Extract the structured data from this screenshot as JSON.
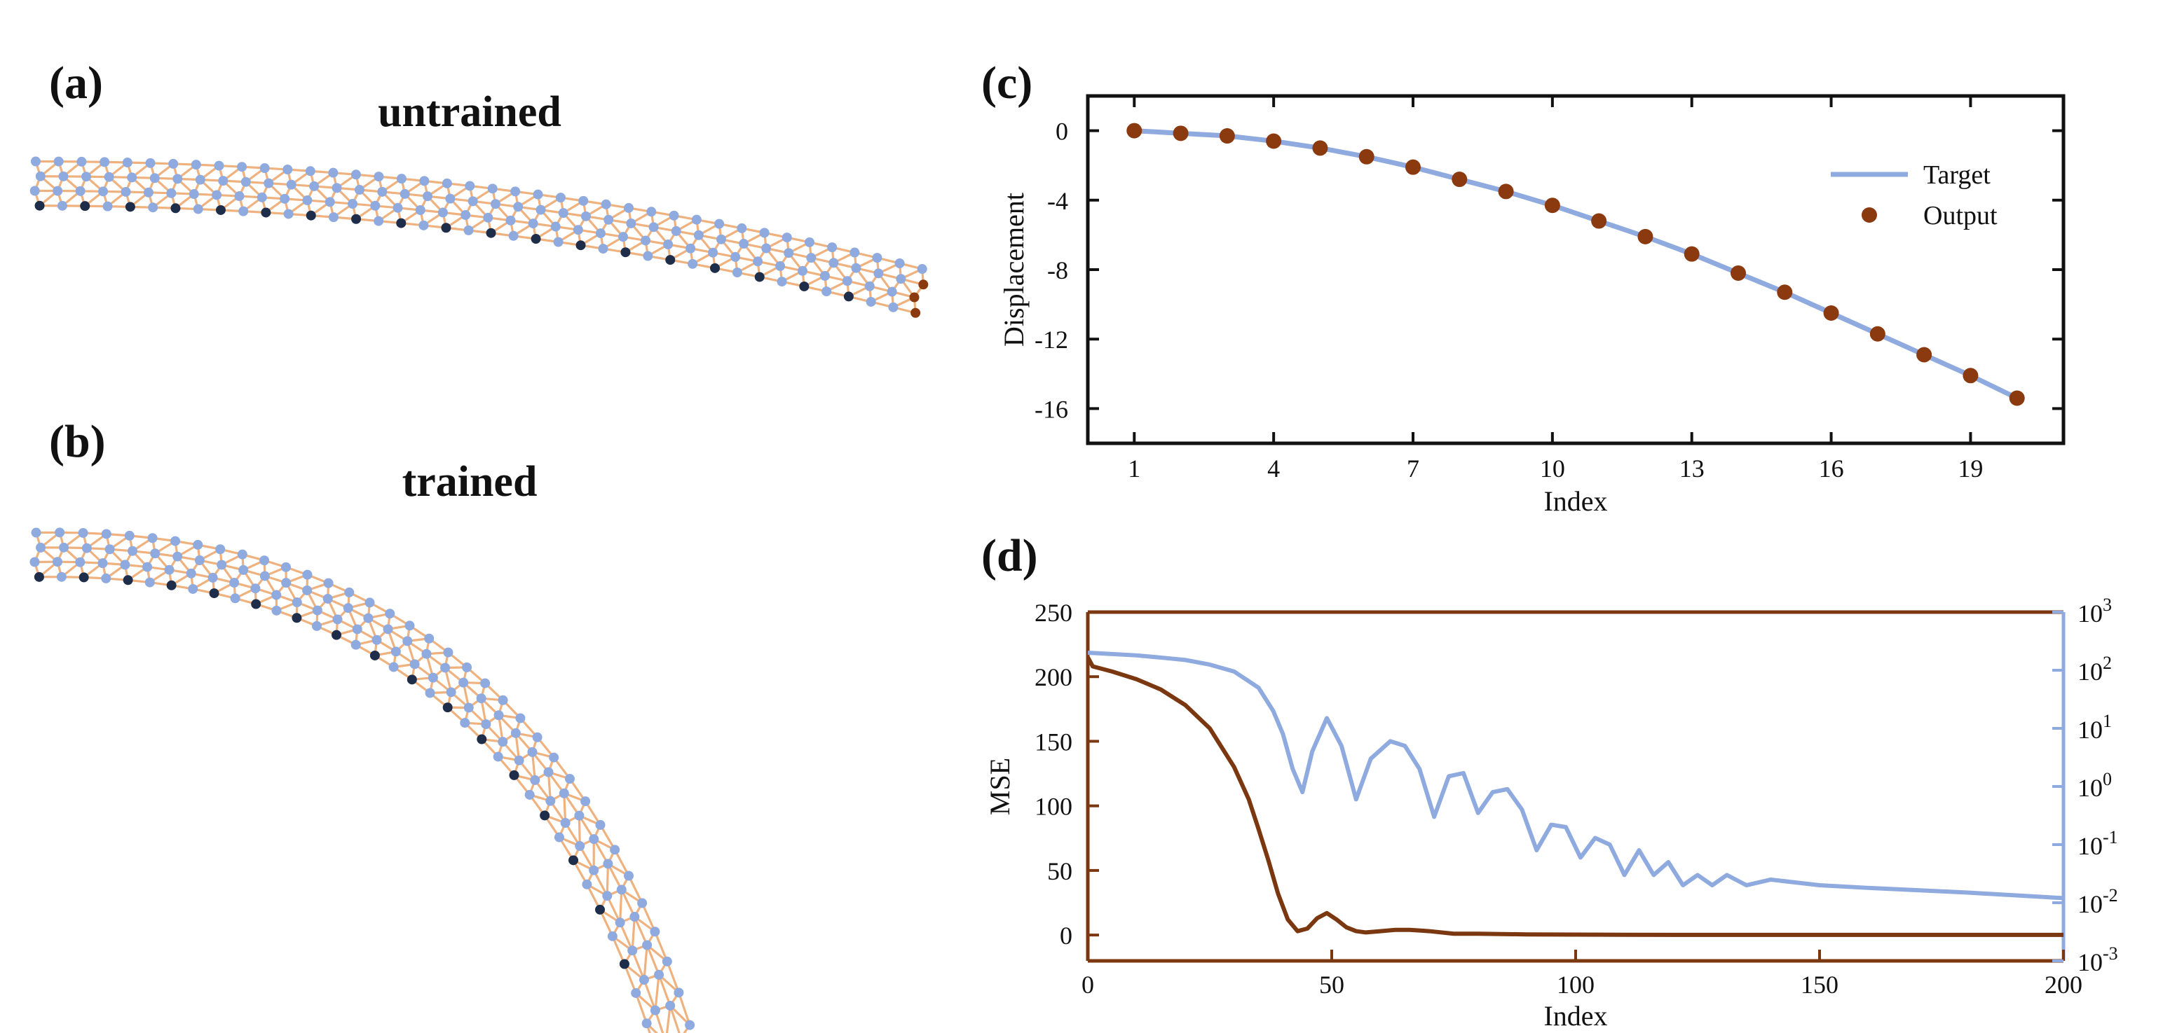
{
  "panels": {
    "a": {
      "label": "(a)",
      "title": "untrained"
    },
    "b": {
      "label": "(b)",
      "title": "trained"
    },
    "c": {
      "label": "(c)"
    },
    "d": {
      "label": "(d)"
    }
  },
  "colors": {
    "bond": "#efb27e",
    "node": "#8eaadf",
    "fixed_node": "#1e2d4a",
    "output_node": "#8b3a10",
    "target": "#8eaadf",
    "output": "#8b3a10",
    "mse": "#7a3710",
    "right_axis": "#8eaadf"
  },
  "chart_data": [
    {
      "panel": "c",
      "type": "line",
      "xlabel": "Index",
      "ylabel": "Displacement",
      "xlim": [
        0,
        21
      ],
      "ylim": [
        -18,
        2
      ],
      "xticks": [
        1,
        4,
        7,
        10,
        13,
        16,
        19
      ],
      "yticks": [
        0,
        -4,
        -8,
        -12,
        -16
      ],
      "ytick_labels": [
        "0",
        "-4",
        "-8",
        "-12",
        "-16"
      ],
      "legend": {
        "placement": "top-right",
        "entries": [
          "Target",
          "Output"
        ]
      },
      "x": [
        1,
        2,
        3,
        4,
        5,
        6,
        7,
        8,
        9,
        10,
        11,
        12,
        13,
        14,
        15,
        16,
        17,
        18,
        19,
        20
      ],
      "series": [
        {
          "name": "Target",
          "kind": "line",
          "values": [
            0,
            -0.15,
            -0.3,
            -0.6,
            -1.0,
            -1.5,
            -2.1,
            -2.8,
            -3.5,
            -4.3,
            -5.2,
            -6.1,
            -7.1,
            -8.2,
            -9.3,
            -10.5,
            -11.7,
            -12.9,
            -14.1,
            -15.4
          ]
        },
        {
          "name": "Output",
          "kind": "scatter",
          "values": [
            0,
            -0.15,
            -0.3,
            -0.6,
            -1.0,
            -1.5,
            -2.1,
            -2.8,
            -3.5,
            -4.3,
            -5.2,
            -6.1,
            -7.1,
            -8.2,
            -9.3,
            -10.5,
            -11.7,
            -12.9,
            -14.1,
            -15.4
          ]
        }
      ]
    },
    {
      "panel": "d",
      "type": "line",
      "xlabel": "Index",
      "ylabel": "MSE",
      "xlim": [
        0,
        200
      ],
      "ylim": [
        -20,
        250
      ],
      "xticks": [
        0,
        50,
        100,
        150,
        200
      ],
      "yticks": [
        0,
        50,
        100,
        150,
        200,
        250
      ],
      "right_axis": {
        "scale": "log",
        "ylim": [
          0.001,
          1000
        ],
        "ticks": [
          1000,
          100,
          10,
          1,
          0.1,
          0.01,
          0.001
        ],
        "tick_bases": [
          "10",
          "10",
          "10",
          "10",
          "10",
          "10",
          "10"
        ],
        "tick_exponents": [
          "3",
          "2",
          "1",
          "0",
          "-1",
          "-2",
          "-3"
        ]
      },
      "series": [
        {
          "axis": "left",
          "x": [
            0,
            1,
            5,
            10,
            15,
            20,
            25,
            30,
            33,
            35,
            37,
            39,
            41,
            43,
            45,
            47,
            49,
            51,
            53,
            55,
            57,
            60,
            63,
            66,
            70,
            75,
            80,
            90,
            100,
            110,
            120,
            150,
            200
          ],
          "values": [
            215,
            208,
            204,
            198,
            190,
            178,
            160,
            130,
            105,
            82,
            58,
            32,
            12,
            3,
            5,
            13,
            17,
            12,
            6,
            3,
            2,
            3,
            4,
            4,
            3,
            1,
            1,
            0.5,
            0.3,
            0.2,
            0.1,
            0.1,
            0.1
          ]
        },
        {
          "axis": "right",
          "x": [
            0,
            5,
            10,
            15,
            20,
            25,
            30,
            35,
            38,
            40,
            42,
            44,
            46,
            49,
            52,
            55,
            58,
            62,
            65,
            68,
            71,
            74,
            77,
            80,
            83,
            86,
            89,
            92,
            95,
            98,
            101,
            104,
            107,
            110,
            113,
            116,
            119,
            122,
            125,
            128,
            131,
            135,
            140,
            150,
            160,
            180,
            200
          ],
          "values": [
            200,
            190,
            180,
            165,
            150,
            125,
            95,
            50,
            20,
            8,
            2,
            0.8,
            4,
            15,
            5,
            0.6,
            3,
            6,
            5,
            2,
            0.3,
            1.5,
            1.7,
            0.35,
            0.8,
            0.9,
            0.4,
            0.08,
            0.22,
            0.2,
            0.06,
            0.13,
            0.1,
            0.03,
            0.08,
            0.03,
            0.05,
            0.02,
            0.03,
            0.02,
            0.03,
            0.02,
            0.025,
            0.02,
            0.018,
            0.015,
            0.012
          ]
        }
      ]
    }
  ]
}
